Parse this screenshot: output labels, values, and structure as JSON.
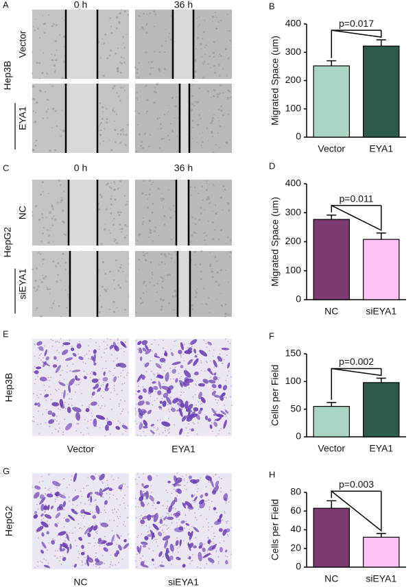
{
  "image_panels": [
    {
      "letter": "A",
      "cell_line": "Hep3B",
      "columns": [
        "0 h",
        "36 h"
      ],
      "rows": [
        "Vector",
        "EYA1"
      ]
    },
    {
      "letter": "C",
      "cell_line": "HepG2",
      "columns": [
        "0 h",
        "36 h"
      ],
      "rows": [
        "NC",
        "siEYA1"
      ]
    },
    {
      "letter": "E",
      "cell_line": "Hep3B",
      "columns": [
        "Vector",
        "EYA1"
      ]
    },
    {
      "letter": "G",
      "cell_line": "HepG2",
      "columns": [
        "NC",
        "siEYA1"
      ]
    }
  ],
  "chart_data": [
    {
      "type": "bar",
      "letter": "B",
      "ylabel": "Migrated Space (um)",
      "categories": [
        "Vector",
        "EYA1"
      ],
      "values": [
        252,
        322
      ],
      "errors": [
        18,
        22
      ],
      "colors": [
        "#a9d5c2",
        "#2e5a4c"
      ],
      "ylim": [
        0,
        400
      ],
      "yticks": [
        0,
        100,
        200,
        300,
        400
      ],
      "annotation": "p=0.017"
    },
    {
      "type": "bar",
      "letter": "D",
      "ylabel": "Migrated Space (um)",
      "categories": [
        "NC",
        "siEYA1"
      ],
      "values": [
        277,
        208
      ],
      "errors": [
        15,
        22
      ],
      "colors": [
        "#7b3b6e",
        "#ffc2f4"
      ],
      "ylim": [
        0,
        400
      ],
      "yticks": [
        0,
        100,
        200,
        300,
        400
      ],
      "annotation": "p=0.011"
    },
    {
      "type": "bar",
      "letter": "F",
      "ylabel": "Cells per Field",
      "categories": [
        "Vector",
        "EYA1"
      ],
      "values": [
        55,
        98
      ],
      "errors": [
        7,
        8
      ],
      "colors": [
        "#a9d5c2",
        "#2e5a4c"
      ],
      "ylim": [
        0,
        150
      ],
      "yticks": [
        0,
        50,
        100,
        150
      ],
      "annotation": "p=0.002"
    },
    {
      "type": "bar",
      "letter": "H",
      "ylabel": "Cells per Field",
      "categories": [
        "NC",
        "siEYA1"
      ],
      "values": [
        63,
        32
      ],
      "errors": [
        8,
        4
      ],
      "colors": [
        "#7b3b6e",
        "#ffc2f4"
      ],
      "ylim": [
        0,
        80
      ],
      "yticks": [
        0,
        20,
        40,
        60,
        80
      ],
      "annotation": "p=0.003"
    }
  ]
}
